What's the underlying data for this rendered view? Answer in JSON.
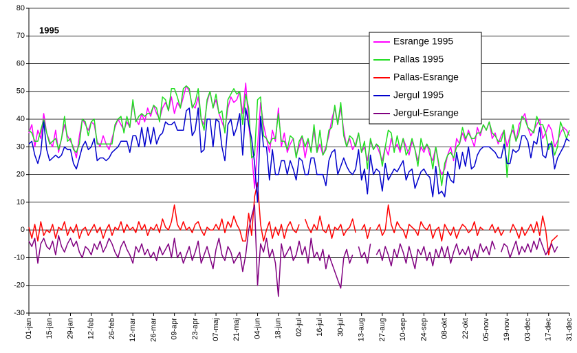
{
  "chart_data": {
    "type": "line",
    "title": "1995",
    "categories": [
      "01-jan",
      null,
      null,
      null,
      null,
      null,
      null,
      "15-jan",
      null,
      null,
      null,
      null,
      null,
      null,
      "29-jan",
      null,
      null,
      null,
      null,
      null,
      null,
      "12-feb",
      null,
      null,
      null,
      null,
      null,
      null,
      "26-feb",
      null,
      null,
      null,
      null,
      null,
      null,
      "12-mar",
      null,
      null,
      null,
      null,
      null,
      null,
      "26-mar",
      null,
      null,
      null,
      null,
      null,
      null,
      "09-apr",
      null,
      null,
      null,
      null,
      null,
      null,
      "23-apr",
      null,
      null,
      null,
      null,
      null,
      null,
      "07-maj",
      null,
      null,
      null,
      null,
      null,
      null,
      "21-maj",
      null,
      null,
      null,
      null,
      null,
      null,
      "04-jun",
      null,
      null,
      null,
      null,
      null,
      null,
      "18-jun",
      null,
      null,
      null,
      null,
      null,
      null,
      "02-jul",
      null,
      null,
      null,
      null,
      null,
      null,
      "16-jul",
      null,
      null,
      null,
      null,
      null,
      null,
      "30-jul",
      null,
      null,
      null,
      null,
      null,
      null,
      "13-aug",
      null,
      null,
      null,
      null,
      null,
      null,
      "27-aug",
      null,
      null,
      null,
      null,
      null,
      null,
      "10-sep",
      null,
      null,
      null,
      null,
      null,
      null,
      "24-sep",
      null,
      null,
      null,
      null,
      null,
      null,
      "08-okt",
      null,
      null,
      null,
      null,
      null,
      null,
      "22-okt",
      null,
      null,
      null,
      null,
      null,
      null,
      "05-nov",
      null,
      null,
      null,
      null,
      null,
      null,
      "19-nov",
      null,
      null,
      null,
      null,
      null,
      null,
      "03-dec",
      null,
      null,
      null,
      null,
      null,
      null,
      "17-dec",
      null,
      null,
      null,
      null,
      null,
      null,
      "31-dec"
    ],
    "series": [
      {
        "name": "Esrange 1995",
        "color": "#ff00ff",
        "values": [
          35,
          38,
          30,
          36,
          33,
          42,
          35,
          32,
          30,
          36,
          28,
          33,
          38,
          34,
          32,
          30,
          26,
          34,
          40,
          38,
          36,
          39,
          38,
          32,
          30,
          34,
          31,
          29,
          33,
          37,
          40,
          38,
          36,
          39,
          37,
          46,
          40,
          38,
          42,
          39,
          44,
          41,
          45,
          42,
          40,
          44,
          46,
          43,
          48,
          42,
          46,
          44,
          48,
          52,
          50,
          45,
          44,
          48,
          40,
          38,
          46,
          50,
          44,
          47,
          42,
          39,
          36,
          44,
          48,
          46,
          47,
          50,
          42,
          53,
          38,
          28,
          15,
          30,
          46,
          38,
          33,
          28,
          36,
          32,
          44,
          30,
          35,
          28,
          31,
          33,
          27,
          30,
          34,
          26,
          32,
          29,
          36,
          28,
          31,
          27,
          30,
          34,
          40,
          44,
          38,
          44,
          36,
          30,
          33,
          29,
          31,
          35,
          28,
          30,
          25,
          32,
          29,
          31,
          28,
          25,
          30,
          27,
          33,
          29,
          31,
          28,
          33,
          30,
          27,
          32,
          29,
          25,
          30,
          28,
          31,
          27,
          25,
          30,
          23,
          20,
          22,
          27,
          30,
          25,
          33,
          31,
          35,
          32,
          36,
          33,
          30,
          37,
          34,
          38,
          36,
          39,
          33,
          35,
          31,
          34,
          36,
          30,
          34,
          36,
          32,
          38,
          40,
          42,
          37,
          34,
          36,
          38,
          40,
          33,
          35,
          38,
          36,
          30,
          32,
          35,
          37,
          36,
          34
        ]
      },
      {
        "name": "Pallas 1995",
        "color": "#22dd22",
        "values": [
          36,
          35,
          32,
          32,
          36,
          40,
          35,
          31,
          32,
          33,
          29,
          33,
          41,
          32,
          33,
          29,
          28,
          31,
          40,
          39,
          34,
          39,
          40,
          31,
          31,
          31,
          31,
          31,
          31,
          38,
          40,
          41,
          35,
          41,
          37,
          47,
          39,
          41,
          42,
          41,
          42,
          42,
          45,
          44,
          39,
          48,
          47,
          43,
          51,
          51,
          48,
          44,
          51,
          52,
          51,
          44,
          46,
          51,
          40,
          36,
          47,
          50,
          44,
          49,
          42,
          43,
          35,
          47,
          49,
          51,
          49,
          50,
          38,
          49,
          44,
          26,
          27,
          47,
          48,
          34,
          33,
          31,
          33,
          33,
          42,
          32,
          32,
          29,
          34,
          33,
          26,
          32,
          34,
          30,
          33,
          28,
          38,
          28,
          36,
          27,
          29,
          36,
          37,
          45,
          38,
          46,
          34,
          30,
          34,
          33,
          30,
          35,
          28,
          32,
          22,
          33,
          29,
          31,
          30,
          23,
          30,
          36,
          35,
          28,
          34,
          29,
          33,
          27,
          29,
          33,
          29,
          23,
          33,
          29,
          31,
          29,
          22,
          30,
          24,
          16,
          24,
          27,
          28,
          26,
          30,
          31,
          37,
          33,
          35,
          33,
          33,
          35,
          35,
          38,
          36,
          39,
          35,
          34,
          32,
          32,
          36,
          19,
          33,
          38,
          32,
          35,
          41,
          40,
          37,
          36,
          35,
          41,
          38,
          38,
          35,
          29,
          32,
          27,
          30,
          39,
          36,
          33,
          36
        ]
      },
      {
        "name": "Pallas-Esrange",
        "color": "#ff0000",
        "values": [
          1,
          -3,
          2,
          -4,
          3,
          -2,
          0,
          -1,
          2,
          -3,
          1,
          0,
          3,
          -2,
          1,
          -1,
          2,
          -3,
          0,
          1,
          -2,
          0,
          2,
          -1,
          1,
          -3,
          0,
          2,
          -2,
          1,
          0,
          3,
          -1,
          2,
          0,
          1,
          -1,
          3,
          0,
          2,
          -2,
          1,
          0,
          2,
          -1,
          4,
          1,
          0,
          3,
          9,
          2,
          0,
          3,
          0,
          1,
          -1,
          2,
          3,
          0,
          -2,
          1,
          0,
          0,
          2,
          0,
          4,
          -1,
          3,
          1,
          5,
          2,
          0,
          -4,
          -4,
          6,
          -2,
          12,
          17,
          2,
          -4,
          0,
          3,
          -3,
          1,
          -2,
          2,
          -3,
          1,
          3,
          0,
          -1,
          2,
          null,
          4,
          1,
          -1,
          2,
          0,
          5,
          0,
          -1,
          2,
          -3,
          1,
          0,
          2,
          -2,
          0,
          1,
          4,
          -1,
          null,
          0,
          2,
          -3,
          1,
          null,
          0,
          2,
          -2,
          0,
          9,
          2,
          -1,
          3,
          1,
          0,
          -3,
          2,
          1,
          0,
          -2,
          3,
          1,
          0,
          2,
          -3,
          0,
          1,
          -4,
          2,
          0,
          -2,
          1,
          -3,
          0,
          2,
          1,
          -1,
          0,
          3,
          -2,
          1,
          0,
          null,
          0,
          2,
          -1,
          1,
          -2,
          0,
          null,
          -1,
          2,
          0,
          -3,
          1,
          -2,
          0,
          2,
          -1,
          3,
          -2,
          5,
          0,
          -9,
          -4,
          -3,
          -2,
          null,
          null,
          null,
          2
        ]
      },
      {
        "name": "Jergul 1995",
        "color": "#0000cc",
        "values": [
          31,
          32,
          27,
          24,
          28,
          39,
          29,
          25,
          26,
          27,
          26,
          27,
          30,
          29,
          29,
          24,
          22,
          26,
          30,
          32,
          29,
          30,
          33,
          25,
          26,
          26,
          25,
          26,
          28,
          29,
          30,
          32,
          32,
          32,
          28,
          34,
          34,
          30,
          37,
          30,
          37,
          31,
          37,
          31,
          34,
          35,
          39,
          38,
          38,
          39,
          36,
          36,
          36,
          43,
          44,
          34,
          36,
          44,
          28,
          29,
          40,
          40,
          30,
          40,
          39,
          30,
          25,
          38,
          40,
          34,
          37,
          42,
          27,
          44,
          38,
          33,
          24,
          10,
          41,
          30,
          30,
          18,
          29,
          20,
          20,
          25,
          25,
          20,
          25,
          22,
          18,
          26,
          25,
          20,
          20,
          26,
          26,
          20,
          20,
          20,
          16,
          25,
          28,
          29,
          20,
          23,
          26,
          23,
          21,
          20,
          22,
          29,
          18,
          22,
          13,
          27,
          20,
          22,
          21,
          14,
          24,
          18,
          20,
          22,
          21,
          23,
          25,
          18,
          21,
          22,
          15,
          18,
          21,
          22,
          20,
          19,
          12,
          23,
          13,
          14,
          12,
          21,
          18,
          17,
          28,
          22,
          28,
          23,
          30,
          22,
          23,
          27,
          29,
          30,
          30,
          30,
          29,
          28,
          26,
          26,
          31,
          24,
          24,
          29,
          28,
          29,
          34,
          34,
          32,
          26,
          32,
          31,
          37,
          27,
          26,
          31,
          31,
          22,
          26,
          28,
          30,
          33,
          32
        ]
      },
      {
        "name": "Jergul-Esrange",
        "color": "#800080",
        "values": [
          -4,
          -6,
          -3,
          -12,
          -5,
          -3,
          -6,
          -7,
          -4,
          -9,
          -2,
          -6,
          -8,
          -5,
          -3,
          -6,
          -4,
          -8,
          -10,
          -6,
          -7,
          -9,
          -5,
          -7,
          -4,
          -8,
          -6,
          -3,
          -5,
          -8,
          -10,
          -6,
          -4,
          -7,
          -9,
          -12,
          -6,
          -8,
          -5,
          -9,
          -7,
          -10,
          -8,
          -11,
          -6,
          -9,
          -7,
          -5,
          -10,
          -3,
          -10,
          -8,
          -12,
          -9,
          -6,
          -11,
          -8,
          -4,
          -12,
          -9,
          -6,
          -10,
          -14,
          -7,
          -3,
          -9,
          -11,
          -6,
          -8,
          -12,
          -10,
          -8,
          -15,
          -9,
          0,
          5,
          9,
          -20,
          -5,
          -8,
          -3,
          -10,
          -7,
          -12,
          -24,
          -5,
          -10,
          -8,
          -6,
          -11,
          -9,
          -4,
          -9,
          -6,
          -12,
          -3,
          -10,
          -8,
          -11,
          -7,
          -14,
          -9,
          -12,
          -15,
          -18,
          -21,
          -10,
          -7,
          -12,
          -9,
          null,
          -6,
          -10,
          -8,
          -12,
          -5,
          null,
          -9,
          -7,
          -11,
          -6,
          -9,
          -13,
          -7,
          -10,
          -5,
          -8,
          -12,
          -6,
          -10,
          -14,
          -7,
          -9,
          -6,
          -11,
          -8,
          -13,
          -7,
          -10,
          -6,
          -10,
          -6,
          -12,
          -8,
          -5,
          -9,
          -7,
          -9,
          -6,
          -11,
          -7,
          -10,
          -5,
          -8,
          -6,
          -9,
          -4,
          -7,
          null,
          -8,
          -5,
          -6,
          -10,
          -7,
          -4,
          -9,
          -6,
          -8,
          -5,
          -8,
          -4,
          -7,
          -3,
          -6,
          -9,
          -7,
          -5,
          -8,
          -6,
          null,
          null,
          null,
          -2
        ]
      }
    ],
    "ylim": [
      -30,
      80
    ],
    "yticks": [
      -30,
      -20,
      -10,
      0,
      10,
      20,
      30,
      40,
      50,
      60,
      70,
      80
    ],
    "grid": true,
    "legend": "upper right"
  }
}
